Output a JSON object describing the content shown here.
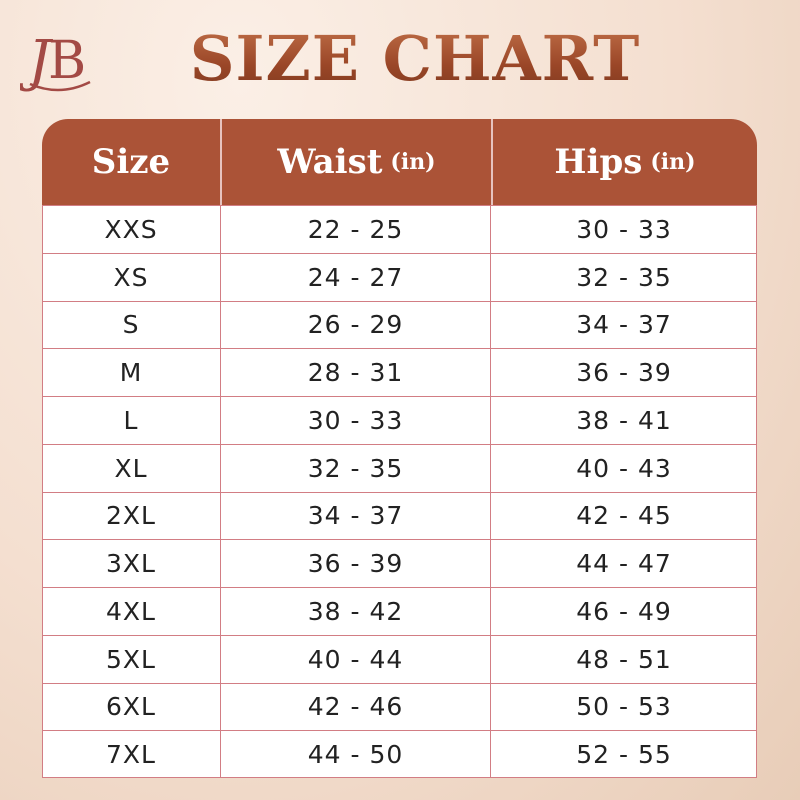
{
  "brand": {
    "logo_text": "JB"
  },
  "title": "SIZE CHART",
  "colors": {
    "header": "#ab5337",
    "title": "#a4532f",
    "grid": "#d27d84"
  },
  "table": {
    "headers": [
      {
        "label": "Size",
        "unit": ""
      },
      {
        "label": "Waist",
        "unit": "(in)"
      },
      {
        "label": "Hips",
        "unit": "(in)"
      }
    ],
    "rows": [
      [
        "XXS",
        "22 - 25",
        "30 - 33"
      ],
      [
        "XS",
        "24 - 27",
        "32 - 35"
      ],
      [
        "S",
        "26 - 29",
        "34 - 37"
      ],
      [
        "M",
        "28 - 31",
        "36 - 39"
      ],
      [
        "L",
        "30 - 33",
        "38 - 41"
      ],
      [
        "XL",
        "32 - 35",
        "40 - 43"
      ],
      [
        "2XL",
        "34 - 37",
        "42 - 45"
      ],
      [
        "3XL",
        "36 - 39",
        "44 - 47"
      ],
      [
        "4XL",
        "38 - 42",
        "46 - 49"
      ],
      [
        "5XL",
        "40 - 44",
        "48 - 51"
      ],
      [
        "6XL",
        "42 - 46",
        "50 - 53"
      ],
      [
        "7XL",
        "44 - 50",
        "52 - 55"
      ]
    ]
  }
}
